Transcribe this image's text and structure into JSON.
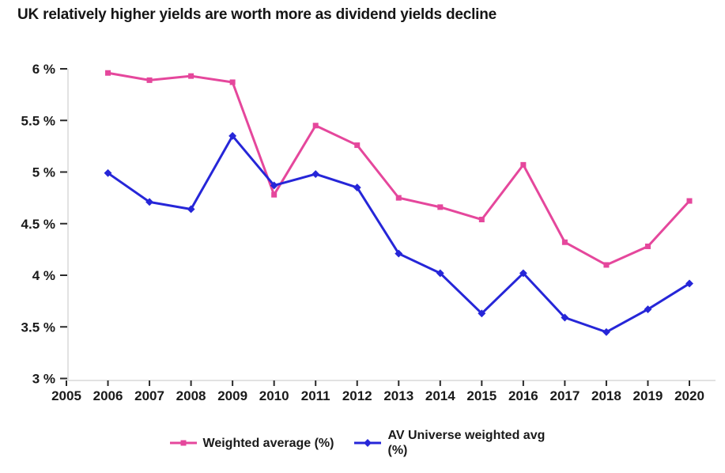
{
  "title": "UK relatively higher yields are worth more as dividend yields decline",
  "chart_data": {
    "type": "line",
    "title": "UK relatively higher yields are worth more as dividend yields decline",
    "x": [
      2006,
      2007,
      2008,
      2009,
      2010,
      2011,
      2012,
      2013,
      2014,
      2015,
      2016,
      2017,
      2018,
      2019,
      2020
    ],
    "series": [
      {
        "name": "Weighted average (%)",
        "color": "#e5479c",
        "marker": "square",
        "values": [
          5.96,
          5.89,
          5.93,
          5.87,
          4.78,
          5.45,
          5.26,
          4.75,
          4.66,
          4.54,
          5.07,
          4.32,
          4.1,
          4.28,
          4.72
        ]
      },
      {
        "name": "AV Universe weighted avg (%)",
        "color": "#2626d8",
        "marker": "diamond",
        "values": [
          4.99,
          4.71,
          4.64,
          5.35,
          4.87,
          4.98,
          4.85,
          4.21,
          4.02,
          3.63,
          4.02,
          3.59,
          3.45,
          3.67,
          3.92
        ]
      }
    ],
    "xlabel": "",
    "ylabel": "",
    "x_tick_labels": [
      "2005",
      "2006",
      "2007",
      "2008",
      "2009",
      "2010",
      "2011",
      "2012",
      "2013",
      "2014",
      "2015",
      "2016",
      "2017",
      "2018",
      "2019",
      "2020"
    ],
    "x_tick_values": [
      2005,
      2006,
      2007,
      2008,
      2009,
      2010,
      2011,
      2012,
      2013,
      2014,
      2015,
      2016,
      2017,
      2018,
      2019,
      2020
    ],
    "y_tick_labels": [
      "3 %",
      "3.5 %",
      "4 %",
      "4.5 %",
      "5 %",
      "5.5 %",
      "6 %"
    ],
    "y_tick_values": [
      3,
      3.5,
      4,
      4.5,
      5,
      5.5,
      6
    ],
    "xlim": [
      2005,
      2020
    ],
    "ylim": [
      3,
      6
    ],
    "grid": false,
    "legend_position": "bottom",
    "axis_color": "#d9d9d9",
    "tick_color": "#2a2a2a"
  }
}
